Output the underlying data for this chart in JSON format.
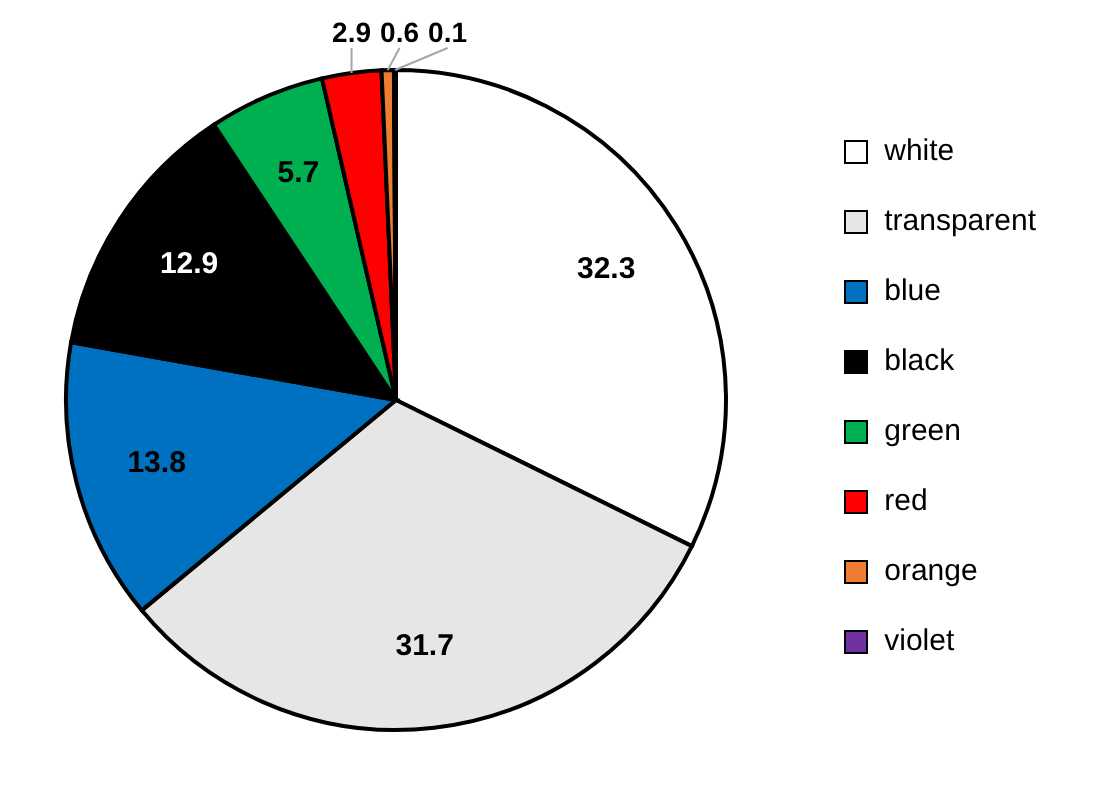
{
  "chart_data": {
    "type": "pie",
    "categories": [
      "white",
      "transparent",
      "blue",
      "black",
      "green",
      "red",
      "orange",
      "violet"
    ],
    "values": [
      32.3,
      31.7,
      13.8,
      12.9,
      5.7,
      2.9,
      0.6,
      0.1
    ],
    "colors": [
      "#ffffff",
      "#e7e6e6",
      "#0070c0",
      "#000000",
      "#00b050",
      "#ff0000",
      "#ed7d31",
      "#7030a0"
    ],
    "data_labels": true,
    "legend": "right"
  }
}
